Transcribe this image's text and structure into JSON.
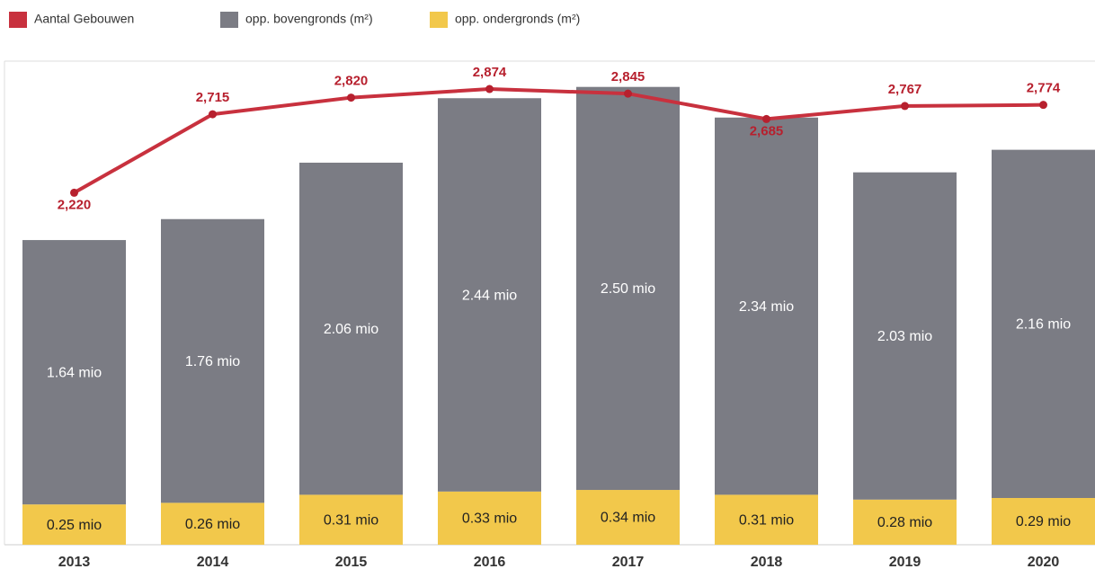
{
  "chart_data": {
    "type": "stacked-bar-line",
    "categories": [
      "2013",
      "2014",
      "2015",
      "2016",
      "2017",
      "2018",
      "2019",
      "2020"
    ],
    "series": [
      {
        "name": "Aantal Gebouwen",
        "color": "#c8313e",
        "axis": "y2",
        "type": "line",
        "values": [
          2220,
          2715,
          2820,
          2874,
          2845,
          2685,
          2767,
          2774
        ],
        "value_labels": [
          "2,220",
          "2,715",
          "2,820",
          "2,874",
          "2,845",
          "2,685",
          "2,767",
          "2,774"
        ]
      },
      {
        "name": "opp. bovengronds (m²)",
        "color": "#7b7c84",
        "type": "bar",
        "values": [
          1.64,
          1.76,
          2.06,
          2.44,
          2.5,
          2.34,
          2.03,
          2.16
        ],
        "value_labels": [
          "1.64 mio",
          "1.76 mio",
          "2.06 mio",
          "2.44 mio",
          "2.50 mio",
          "2.34 mio",
          "2.03 mio",
          "2.16 mio"
        ]
      },
      {
        "name": "opp. ondergronds (m²)",
        "color": "#f2c84b",
        "type": "bar",
        "values": [
          0.25,
          0.26,
          0.31,
          0.33,
          0.34,
          0.31,
          0.28,
          0.29
        ],
        "value_labels": [
          "0.25 mio",
          "0.26 mio",
          "0.31 mio",
          "0.33 mio",
          "0.34 mio",
          "0.31 mio",
          "0.28 mio",
          "0.29 mio"
        ]
      }
    ],
    "ylim": [
      0,
      3
    ],
    "y2lim": [
      0,
      3050
    ]
  }
}
